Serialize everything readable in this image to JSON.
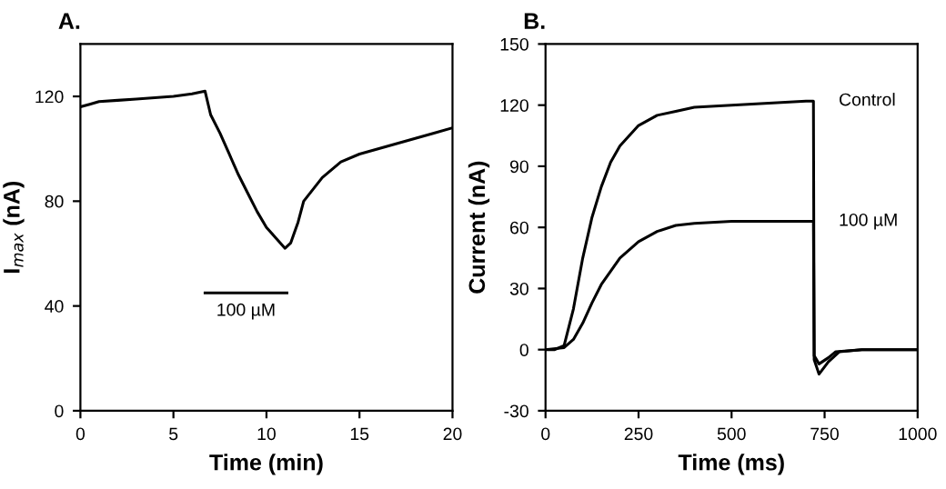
{
  "chart_data": [
    {
      "type": "line",
      "title": "A.",
      "xlabel": "Time (min)",
      "ylabel": "I$_{max}$ (nA)",
      "series": [
        {
          "color": "#000000",
          "x": [
            0,
            0.5,
            1,
            2,
            3,
            4,
            5,
            6,
            6.7,
            7,
            7.5,
            8,
            8.5,
            9,
            9.5,
            10,
            10.5,
            11,
            11.3,
            11.7,
            12,
            13,
            14,
            15,
            16,
            17,
            18,
            19,
            20
          ],
          "values": [
            116,
            117,
            118,
            118.5,
            119,
            119.5,
            120,
            121,
            122,
            113,
            106,
            98,
            90,
            83,
            76,
            70,
            66,
            62,
            64,
            72,
            80,
            89,
            95,
            98,
            100,
            102,
            104,
            106,
            108
          ]
        },
        {
          "color": "#000000",
          "x": [
            6.7,
            11.1
          ],
          "values": [
            45,
            45
          ]
        }
      ],
      "annotations": [
        {
          "text": "100 µM",
          "x": 8.9,
          "y": 45
        }
      ],
      "xlim": [
        0,
        20
      ],
      "xticks": [
        0,
        5,
        10,
        15,
        20
      ],
      "ylim": [
        0,
        140
      ],
      "yticks": [
        0,
        40,
        80,
        120
      ],
      "grid": false,
      "legend": false,
      "marker": "none",
      "line_style": "solid"
    },
    {
      "type": "line",
      "title": "B.",
      "xlabel": "Time (ms)",
      "ylabel": "Current (nA)",
      "series": [
        {
          "name": "Control",
          "color": "#000000",
          "x": [
            0,
            25,
            50,
            75,
            100,
            125,
            150,
            175,
            200,
            250,
            300,
            350,
            400,
            500,
            600,
            700,
            720,
            722,
            735,
            760,
            790,
            850,
            1000
          ],
          "values": [
            0,
            0,
            2,
            20,
            45,
            65,
            80,
            92,
            100,
            110,
            115,
            117,
            119,
            120,
            121,
            122,
            122,
            -5,
            -12,
            -6,
            -1,
            0,
            0
          ]
        },
        {
          "name": "100 µM",
          "color": "#000000",
          "x": [
            0,
            50,
            75,
            100,
            125,
            150,
            200,
            250,
            300,
            350,
            400,
            500,
            600,
            700,
            720,
            722,
            735,
            760,
            780,
            850,
            1000
          ],
          "values": [
            0,
            1,
            5,
            13,
            23,
            32,
            45,
            53,
            58,
            61,
            62,
            63,
            63,
            63,
            63,
            -3,
            -7,
            -4,
            -1,
            0,
            0
          ]
        }
      ],
      "xlim": [
        0,
        1000
      ],
      "xticks": [
        0,
        250,
        500,
        750,
        1000
      ],
      "ylim": [
        -30,
        150
      ],
      "yticks": [
        -30,
        0,
        30,
        60,
        90,
        120,
        150
      ],
      "grid": false,
      "legend": false,
      "marker": "none",
      "line_style": "solid"
    }
  ]
}
